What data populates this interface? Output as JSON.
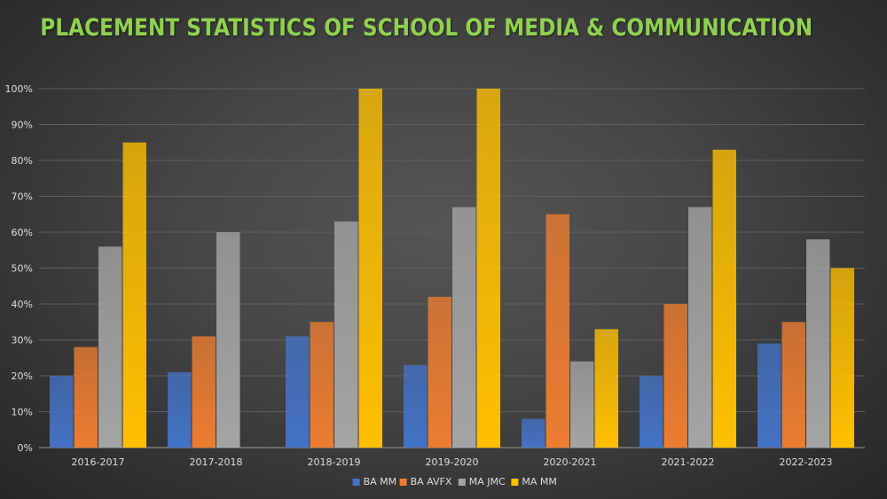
{
  "chart_data": {
    "type": "bar",
    "title": "PLACEMENT STATISTICS OF SCHOOL OF MEDIA & COMMUNICATION",
    "xlabel": "",
    "ylabel": "",
    "ylim": [
      0,
      100
    ],
    "yticks": [
      "0%",
      "10%",
      "20%",
      "30%",
      "40%",
      "50%",
      "60%",
      "70%",
      "80%",
      "90%",
      "100%"
    ],
    "grid": true,
    "legend_position": "bottom",
    "categories": [
      "2016-2017",
      "2017-2018",
      "2018-2019",
      "2019-2020",
      "2020-2021",
      "2021-2022",
      "2022-2023"
    ],
    "series": [
      {
        "name": "BA MM",
        "color": "#4472c4",
        "values": [
          20,
          21,
          31,
          23,
          8,
          20,
          29
        ]
      },
      {
        "name": "BA AVFX",
        "color": "#ed7d31",
        "values": [
          28,
          31,
          35,
          42,
          65,
          40,
          35
        ]
      },
      {
        "name": "MA JMC",
        "color": "#a5a5a5",
        "values": [
          56,
          60,
          63,
          67,
          24,
          67,
          58
        ]
      },
      {
        "name": "MA MM",
        "color": "#ffc000",
        "values": [
          85,
          0,
          100,
          100,
          33,
          83,
          50
        ]
      }
    ]
  }
}
